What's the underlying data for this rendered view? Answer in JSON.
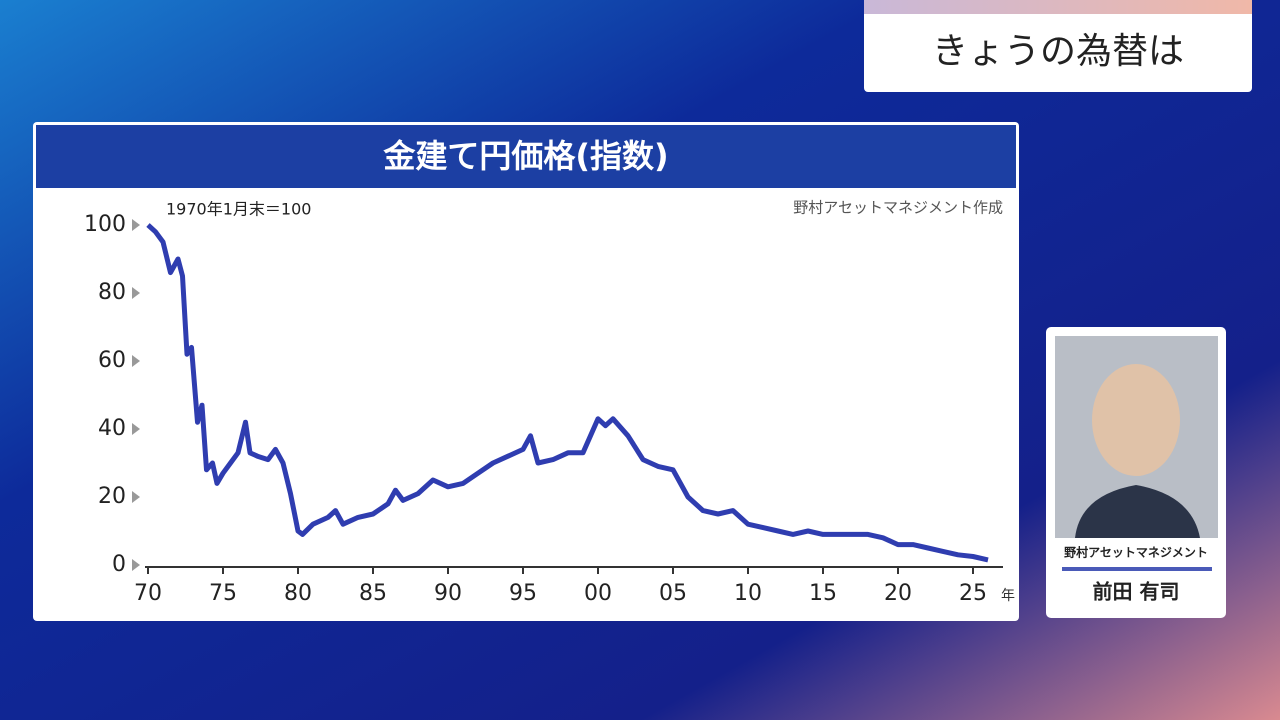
{
  "banner": {
    "title": "きょうの為替は"
  },
  "chart_data": {
    "type": "line",
    "title": "金建て円価格(指数)",
    "note": "1970年1月末＝100",
    "source": "野村アセットマネジメント作成",
    "x_unit": "年",
    "color": "#2f3db0",
    "x": [
      1970,
      1970.5,
      1971,
      1971.5,
      1972,
      1972.3,
      1972.6,
      1972.9,
      1973.3,
      1973.6,
      1973.9,
      1974.3,
      1974.6,
      1975,
      1975.5,
      1976,
      1976.5,
      1976.8,
      1977.3,
      1978,
      1978.5,
      1979,
      1979.5,
      1980,
      1980.3,
      1981,
      1982,
      1982.5,
      1983,
      1984,
      1985,
      1986,
      1986.5,
      1987,
      1988,
      1989,
      1990,
      1991,
      1992,
      1993,
      1994,
      1995,
      1995.5,
      1996,
      1997,
      1998,
      1999,
      2000,
      2000.5,
      2001,
      2002,
      2003,
      2004,
      2005,
      2006,
      2007,
      2008,
      2009,
      2010,
      2011,
      2012,
      2013,
      2014,
      2015,
      2016,
      2017,
      2018,
      2019,
      2020,
      2021,
      2022,
      2023,
      2024,
      2025,
      2026
    ],
    "values": [
      100,
      98,
      95,
      86,
      90,
      85,
      62,
      64,
      42,
      47,
      28,
      30,
      24,
      27,
      30,
      33,
      42,
      33,
      32,
      31,
      34,
      30,
      21,
      10,
      9,
      12,
      14,
      16,
      12,
      14,
      15,
      18,
      22,
      19,
      21,
      25,
      23,
      24,
      27,
      30,
      32,
      34,
      38,
      30,
      31,
      33,
      33,
      43,
      41,
      43,
      38,
      31,
      29,
      28,
      20,
      16,
      15,
      16,
      12,
      11,
      10,
      9,
      10,
      9,
      9,
      9,
      9,
      8,
      6,
      6,
      5,
      4,
      3,
      2.5,
      1.5
    ],
    "xlim": [
      1970,
      2027
    ],
    "ylim": [
      0,
      100
    ],
    "xticks": [
      {
        "value": 1970,
        "label": "70"
      },
      {
        "value": 1975,
        "label": "75"
      },
      {
        "value": 1980,
        "label": "80"
      },
      {
        "value": 1985,
        "label": "85"
      },
      {
        "value": 1990,
        "label": "90"
      },
      {
        "value": 1995,
        "label": "95"
      },
      {
        "value": 2000,
        "label": "00"
      },
      {
        "value": 2005,
        "label": "05"
      },
      {
        "value": 2010,
        "label": "10"
      },
      {
        "value": 2015,
        "label": "15"
      },
      {
        "value": 2020,
        "label": "20"
      },
      {
        "value": 2025,
        "label": "25"
      }
    ],
    "yticks": [
      0,
      20,
      40,
      60,
      80,
      100
    ]
  },
  "person": {
    "company": "野村アセットマネジメント",
    "name": "前田 有司"
  }
}
